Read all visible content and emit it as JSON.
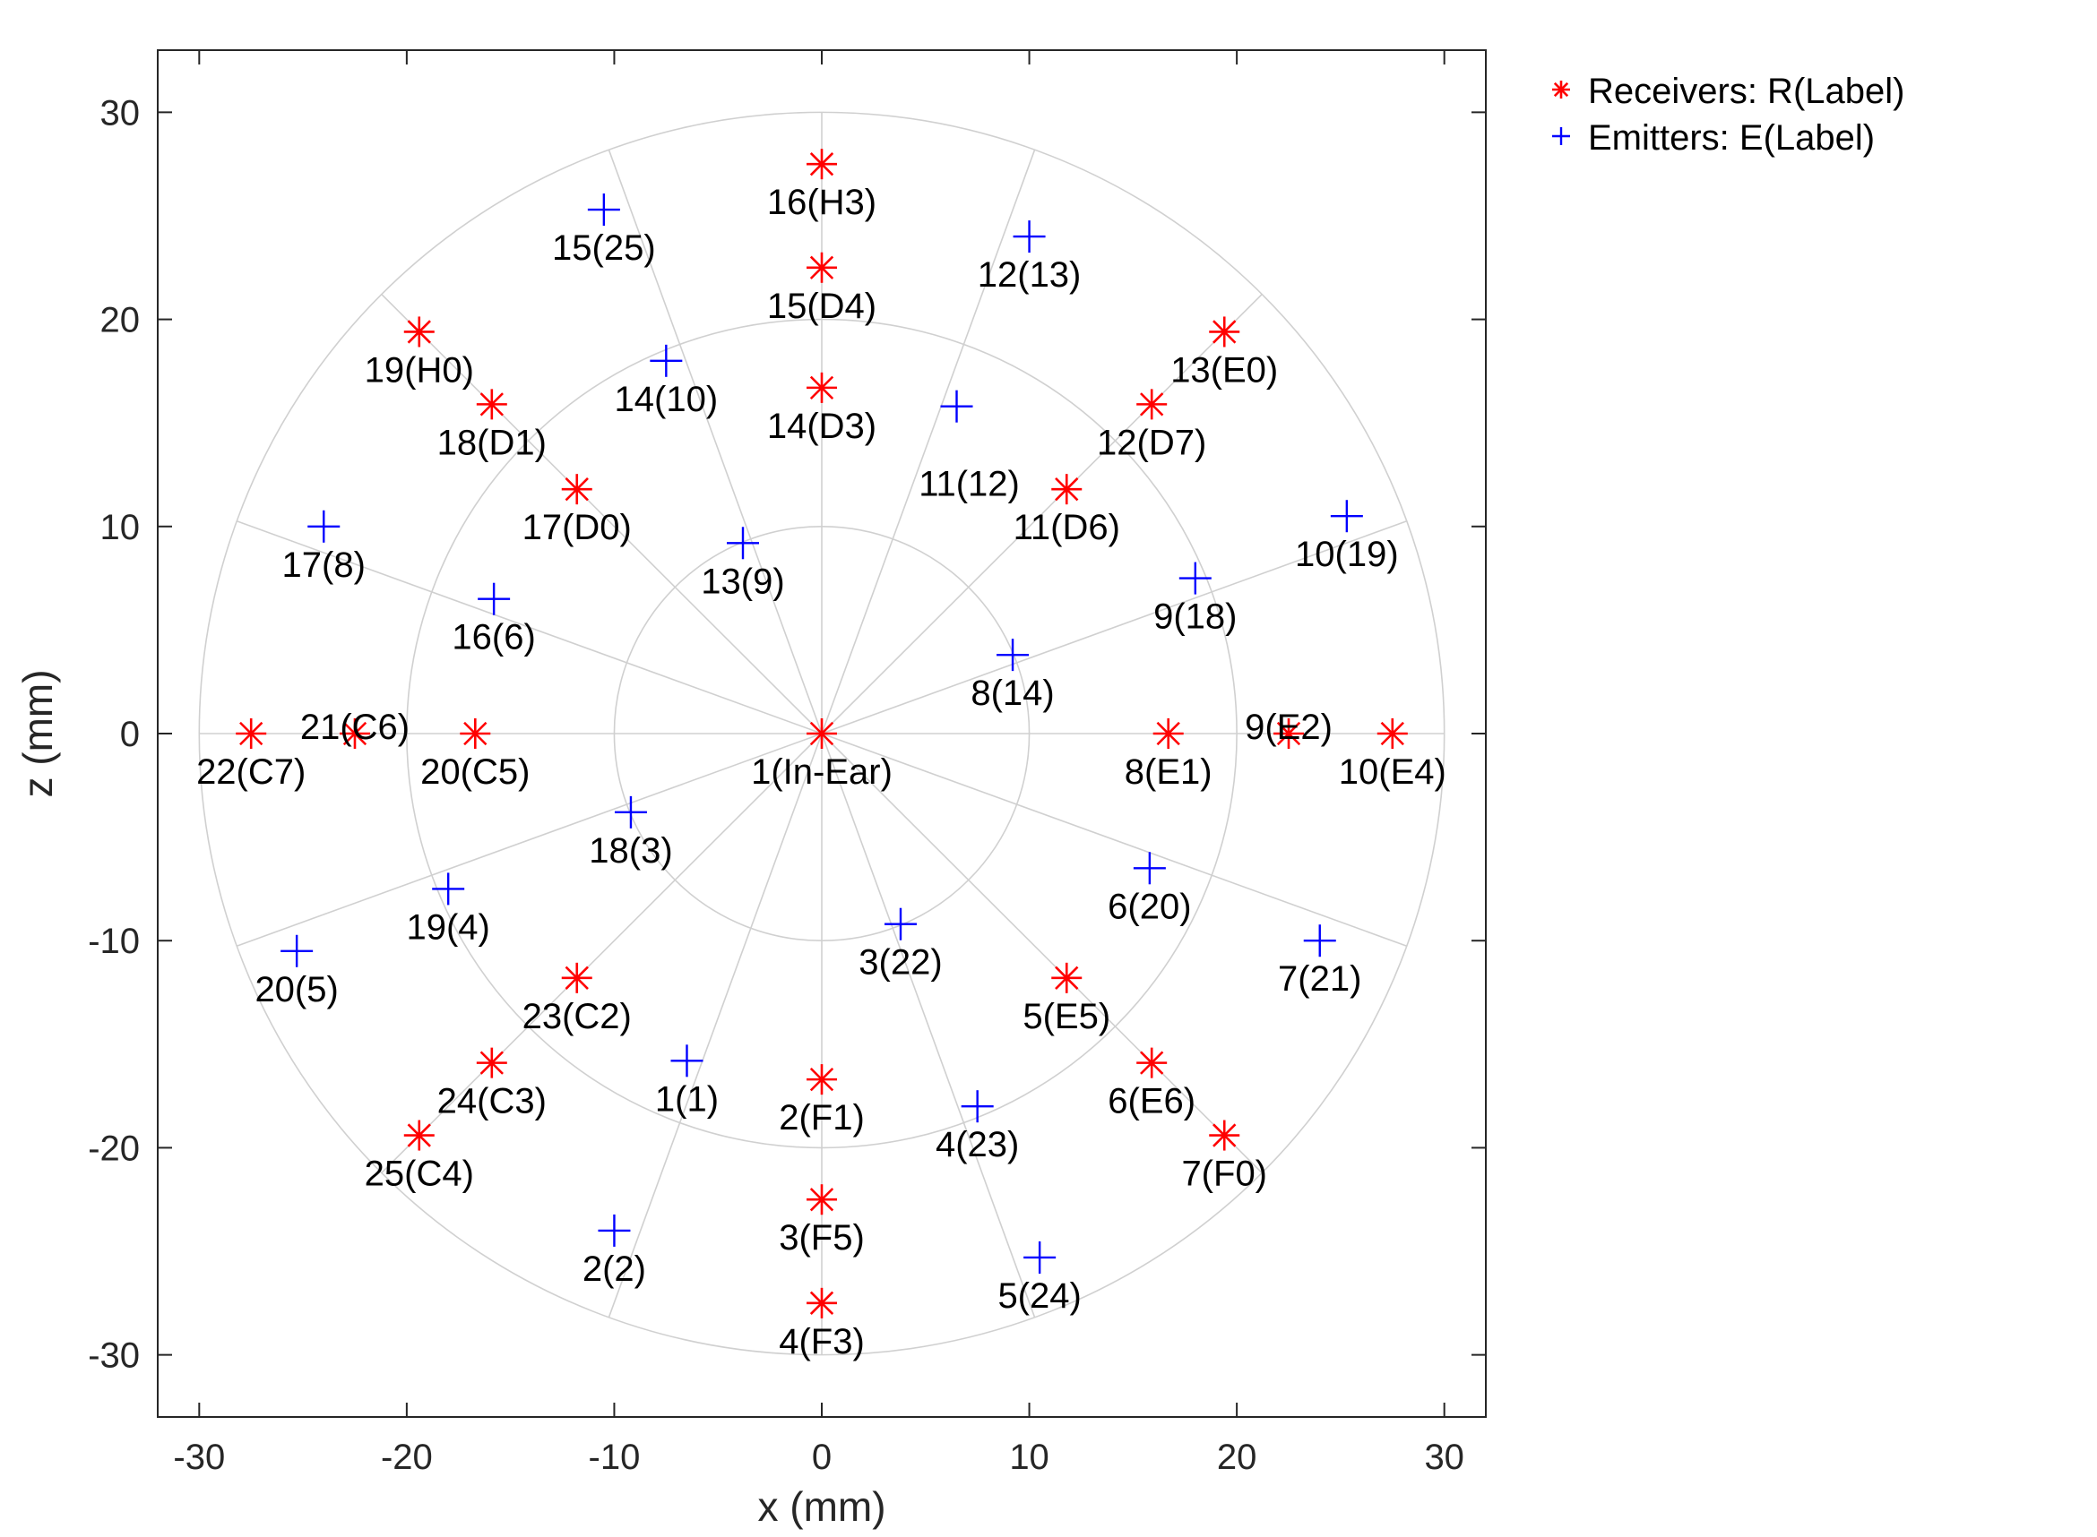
{
  "chart_data": {
    "type": "scatter",
    "xlabel": "x (mm)",
    "ylabel": "z (mm)",
    "xlim": [
      -32,
      32
    ],
    "ylim": [
      -33,
      33
    ],
    "xticks": [
      -30,
      -20,
      -10,
      0,
      10,
      20,
      30
    ],
    "yticks": [
      -30,
      -20,
      -10,
      0,
      10,
      20,
      30
    ],
    "grid": "polar",
    "polar_grid": {
      "radii": [
        10,
        20,
        30
      ],
      "angles_deg": [
        0,
        20,
        45,
        70,
        90,
        110,
        135,
        160,
        180,
        200,
        225,
        250,
        270,
        290,
        315,
        340
      ]
    },
    "legend_position": "outside-top-right",
    "colors": {
      "receivers": "#ff0000",
      "emitters": "#0000ff",
      "grid": "#d0d0d0"
    },
    "series": [
      {
        "name": "Receivers: R(Label)",
        "marker": "asterisk",
        "points": [
          {
            "label": "1(In-Ear)",
            "x": 0,
            "y": 0
          },
          {
            "label": "2(F1)",
            "x": 0,
            "y": -16.7
          },
          {
            "label": "3(F5)",
            "x": 0,
            "y": -22.5
          },
          {
            "label": "4(F3)",
            "x": 0,
            "y": -27.5
          },
          {
            "label": "5(E5)",
            "x": 11.8,
            "y": -11.8
          },
          {
            "label": "6(E6)",
            "x": 15.9,
            "y": -15.9
          },
          {
            "label": "7(F0)",
            "x": 19.4,
            "y": -19.4
          },
          {
            "label": "8(E1)",
            "x": 16.7,
            "y": 0
          },
          {
            "label": "9(E2)",
            "x": 22.5,
            "y": 0
          },
          {
            "label": "10(E4)",
            "x": 27.5,
            "y": 0
          },
          {
            "label": "11(D6)",
            "x": 11.8,
            "y": 11.8
          },
          {
            "label": "12(D7)",
            "x": 15.9,
            "y": 15.9
          },
          {
            "label": "13(E0)",
            "x": 19.4,
            "y": 19.4
          },
          {
            "label": "14(D3)",
            "x": 0,
            "y": 16.7
          },
          {
            "label": "15(D4)",
            "x": 0,
            "y": 22.5
          },
          {
            "label": "16(H3)",
            "x": 0,
            "y": 27.5
          },
          {
            "label": "17(D0)",
            "x": -11.8,
            "y": 11.8
          },
          {
            "label": "18(D1)",
            "x": -15.9,
            "y": 15.9
          },
          {
            "label": "19(H0)",
            "x": -19.4,
            "y": 19.4
          },
          {
            "label": "20(C5)",
            "x": -16.7,
            "y": 0
          },
          {
            "label": "21(C6)",
            "x": -22.5,
            "y": 0
          },
          {
            "label": "22(C7)",
            "x": -27.5,
            "y": 0
          },
          {
            "label": "23(C2)",
            "x": -11.8,
            "y": -11.8
          },
          {
            "label": "24(C3)",
            "x": -15.9,
            "y": -15.9
          },
          {
            "label": "25(C4)",
            "x": -19.4,
            "y": -19.4
          }
        ]
      },
      {
        "name": "Emitters: E(Label)",
        "marker": "plus",
        "points": [
          {
            "label": "1(1)",
            "x": -6.5,
            "y": -15.8
          },
          {
            "label": "2(2)",
            "x": -10,
            "y": -24
          },
          {
            "label": "3(22)",
            "x": 3.8,
            "y": -9.2
          },
          {
            "label": "4(23)",
            "x": 7.5,
            "y": -18
          },
          {
            "label": "5(24)",
            "x": 10.5,
            "y": -25.3
          },
          {
            "label": "6(20)",
            "x": 15.8,
            "y": -6.5
          },
          {
            "label": "7(21)",
            "x": 24,
            "y": -10
          },
          {
            "label": "8(14)",
            "x": 9.2,
            "y": 3.8
          },
          {
            "label": "9(18)",
            "x": 18,
            "y": 7.5
          },
          {
            "label": "10(19)",
            "x": 25.3,
            "y": 10.5
          },
          {
            "label": "11(12)",
            "x": 6.5,
            "y": 15.8
          },
          {
            "label": "12(13)",
            "x": 10,
            "y": 24
          },
          {
            "label": "13(9)",
            "x": -3.8,
            "y": 9.2
          },
          {
            "label": "14(10)",
            "x": -7.5,
            "y": 18
          },
          {
            "label": "15(25)",
            "x": -10.5,
            "y": 25.3
          },
          {
            "label": "16(6)",
            "x": -15.8,
            "y": 6.5
          },
          {
            "label": "17(8)",
            "x": -24,
            "y": 10
          },
          {
            "label": "18(3)",
            "x": -9.2,
            "y": -3.8
          },
          {
            "label": "19(4)",
            "x": -18,
            "y": -7.5
          },
          {
            "label": "20(5)",
            "x": -25.3,
            "y": -10.5
          }
        ]
      }
    ]
  }
}
